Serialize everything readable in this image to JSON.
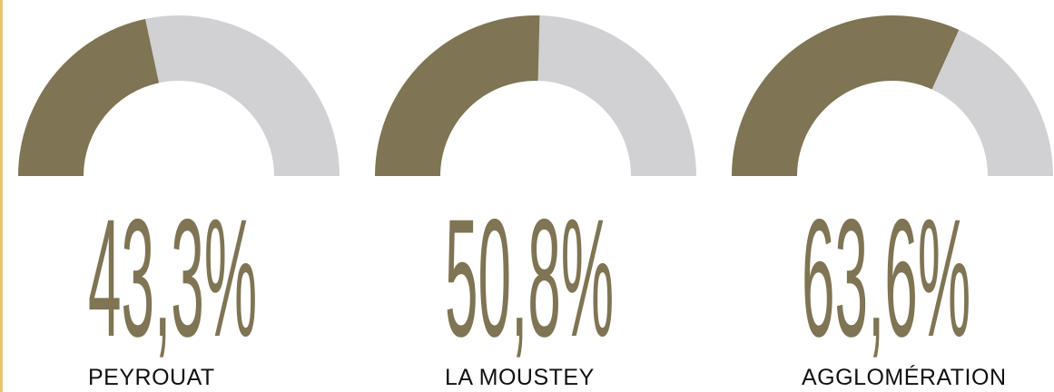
{
  "chart_data": [
    {
      "type": "gauge",
      "label": "PEYROUAT",
      "value": 43.3,
      "value_label": "43,3%",
      "color": "#7f7453",
      "track_color": "#d1d1d3",
      "ylim": [
        0,
        100
      ]
    },
    {
      "type": "gauge",
      "label": "LA MOUSTEY",
      "value": 50.8,
      "value_label": "50,8%",
      "color": "#7f7453",
      "track_color": "#d1d1d3",
      "ylim": [
        0,
        100
      ]
    },
    {
      "type": "gauge",
      "label": "AGGLOMÉRATION",
      "value": 63.6,
      "value_label": "63,6%",
      "color": "#7f7453",
      "track_color": "#d1d1d3",
      "ylim": [
        0,
        100
      ]
    }
  ]
}
